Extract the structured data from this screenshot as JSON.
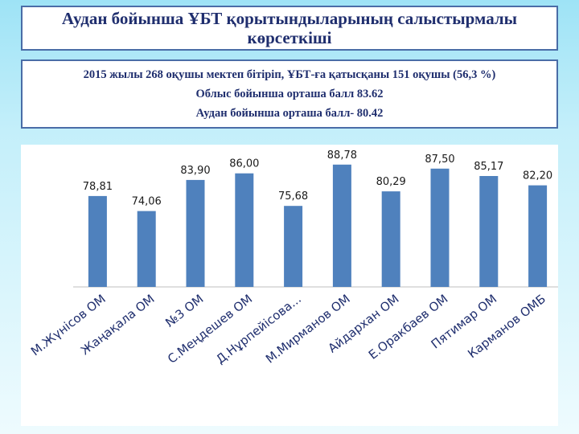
{
  "title": "Аудан бойынша ҰБТ қорытындыларының  салыстырмалы көрсеткіші",
  "info": {
    "line1": "2015 жылы  268 оқушы мектеп бітіріп, ҰБТ-ға қатысқаны 151 оқушы (56,3 %)",
    "line2": "Облыс бойынша орташа балл 83.62",
    "line3": "Аудан бойынша орташа балл-  80.42"
  },
  "colors": {
    "bar": "#4f81bd",
    "title_text": "#1f2e6e",
    "box_border": "#4a6da7"
  },
  "chart_data": {
    "type": "bar",
    "categories": [
      "М.Жүнісов ОМ",
      "Жаңақала ОМ",
      "№3 ОМ",
      "С.Меңдешев ОМ",
      "Д.Нұрпейісова...",
      "М.Мирманов ОМ",
      "Айдархан ОМ",
      "Е.Оракбаев ОМ",
      "Пятимар ОМ",
      "Карманов ОМБ"
    ],
    "values": [
      78.81,
      74.06,
      83.9,
      86.0,
      75.68,
      88.78,
      80.29,
      87.5,
      85.17,
      82.2
    ],
    "value_labels": [
      "78,81",
      "74,06",
      "83,90",
      "86,00",
      "75,68",
      "88,78",
      "80,29",
      "87,50",
      "85,17",
      "82,20"
    ],
    "title": "",
    "xlabel": "",
    "ylabel": "",
    "ylim": [
      50,
      90
    ],
    "grid": false,
    "legend": "none"
  }
}
